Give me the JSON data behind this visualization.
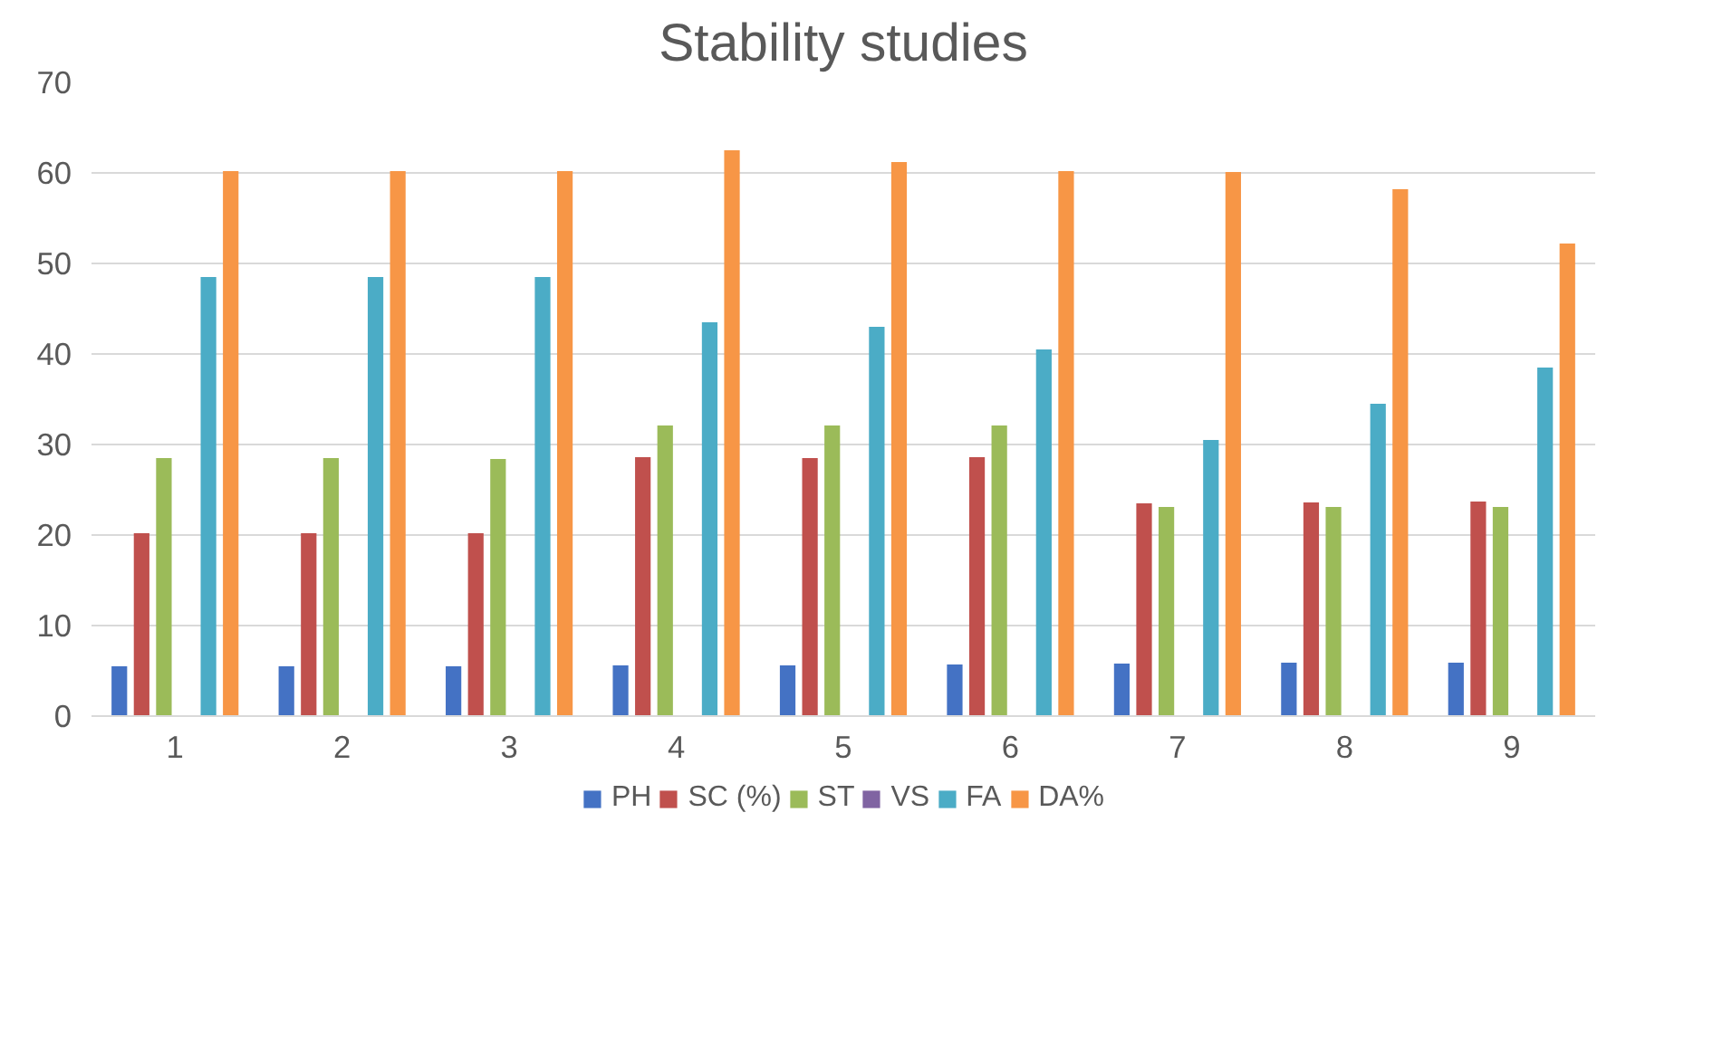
{
  "chart_data": {
    "type": "bar",
    "title": "Stability studies",
    "categories": [
      "1",
      "2",
      "3",
      "4",
      "5",
      "6",
      "7",
      "8",
      "9"
    ],
    "series": [
      {
        "name": "PH",
        "color": "#4472c4",
        "values": [
          5.5,
          5.5,
          5.5,
          5.6,
          5.6,
          5.7,
          5.8,
          5.9,
          5.9
        ]
      },
      {
        "name": "SC (%)",
        "color": "#c0504d",
        "values": [
          20.2,
          20.2,
          20.2,
          28.6,
          28.5,
          28.6,
          23.5,
          23.6,
          23.7
        ]
      },
      {
        "name": "ST",
        "color": "#9bbb59",
        "values": [
          28.5,
          28.5,
          28.4,
          32.1,
          32.1,
          32.1,
          23.1,
          23.1,
          23.1
        ]
      },
      {
        "name": "VS",
        "color": "#8064a2",
        "values": [
          null,
          null,
          null,
          null,
          null,
          null,
          null,
          null,
          null
        ]
      },
      {
        "name": "FA",
        "color": "#4bacc6",
        "values": [
          48.5,
          48.5,
          48.5,
          43.5,
          43,
          40.5,
          30.5,
          34.5,
          38.5
        ]
      },
      {
        "name": "DA%",
        "color": "#f79646",
        "values": [
          60.2,
          60.2,
          60.2,
          62.5,
          61.2,
          60.2,
          60.1,
          58.2,
          52.2
        ]
      }
    ],
    "ylim": [
      0,
      70
    ],
    "yticks": [
      0,
      10,
      20,
      30,
      40,
      50,
      60,
      70
    ],
    "grid": "y",
    "legend": "bottom"
  }
}
